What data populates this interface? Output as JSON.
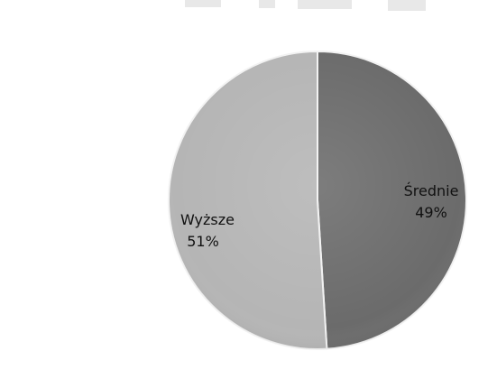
{
  "chart_data": {
    "type": "pie",
    "slices": [
      {
        "label": "Średnie",
        "value": 49,
        "value_text": "49%",
        "color": "#6b6b6b"
      },
      {
        "label": "Wyższe",
        "value": 51,
        "value_text": "51%",
        "color": "#b5b5b5"
      }
    ],
    "legend": "none",
    "title": ""
  }
}
